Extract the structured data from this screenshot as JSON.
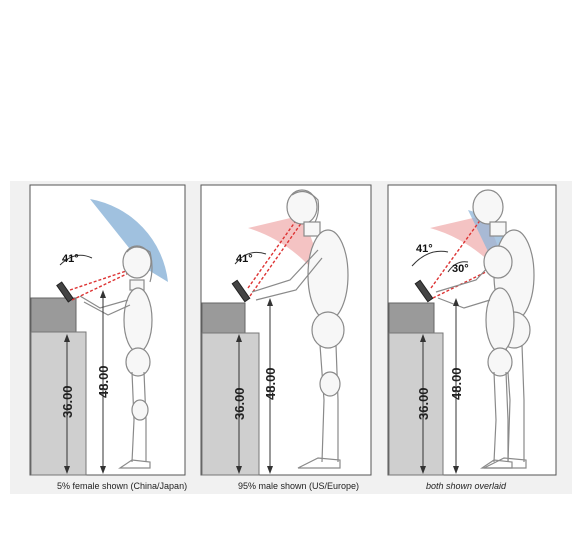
{
  "panels": [
    {
      "caption": "5% female shown (China/Japan)",
      "angle_label": "41°",
      "counter_height": "36.00",
      "eye_height": "48.00",
      "cone_color": "#8fb6d9"
    },
    {
      "caption": "95% male shown (US/Europe)",
      "angle_label": "41°",
      "counter_height": "36.00",
      "eye_height": "48.00",
      "cone_color": "#f2b8b8"
    },
    {
      "caption": "both shown overlaid",
      "angle_label": "41°",
      "angle_label_2": "30°",
      "counter_height": "36.00",
      "eye_height": "48.00",
      "cone_color": "#f2b8b8",
      "cone_color_2": "#8fb6d9"
    }
  ]
}
